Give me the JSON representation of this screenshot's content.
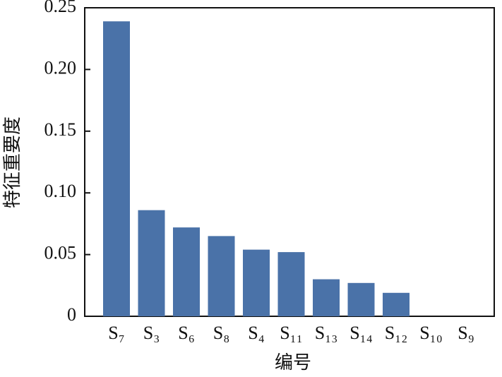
{
  "chart_data": {
    "type": "bar",
    "x_label": "编号",
    "y_label": "特征重要度",
    "categories": [
      "S₇",
      "S₃",
      "S₆",
      "S₈",
      "S₄",
      "S₁₁",
      "S₁₃",
      "S₁₄",
      "S₁₂",
      "S₁₀",
      "S₉"
    ],
    "values": [
      0.239,
      0.086,
      0.072,
      0.065,
      0.054,
      0.052,
      0.03,
      0.027,
      0.019,
      0,
      0
    ],
    "color": "#4a72a8",
    "ylim": [
      0,
      0.25
    ],
    "yticks": [
      0,
      0.05,
      {
        "value": 0.1,
        "label": "0.10"
      },
      0.15,
      {
        "value": 0.2,
        "label": "0.20"
      },
      0.25
    ],
    "grid": false
  }
}
